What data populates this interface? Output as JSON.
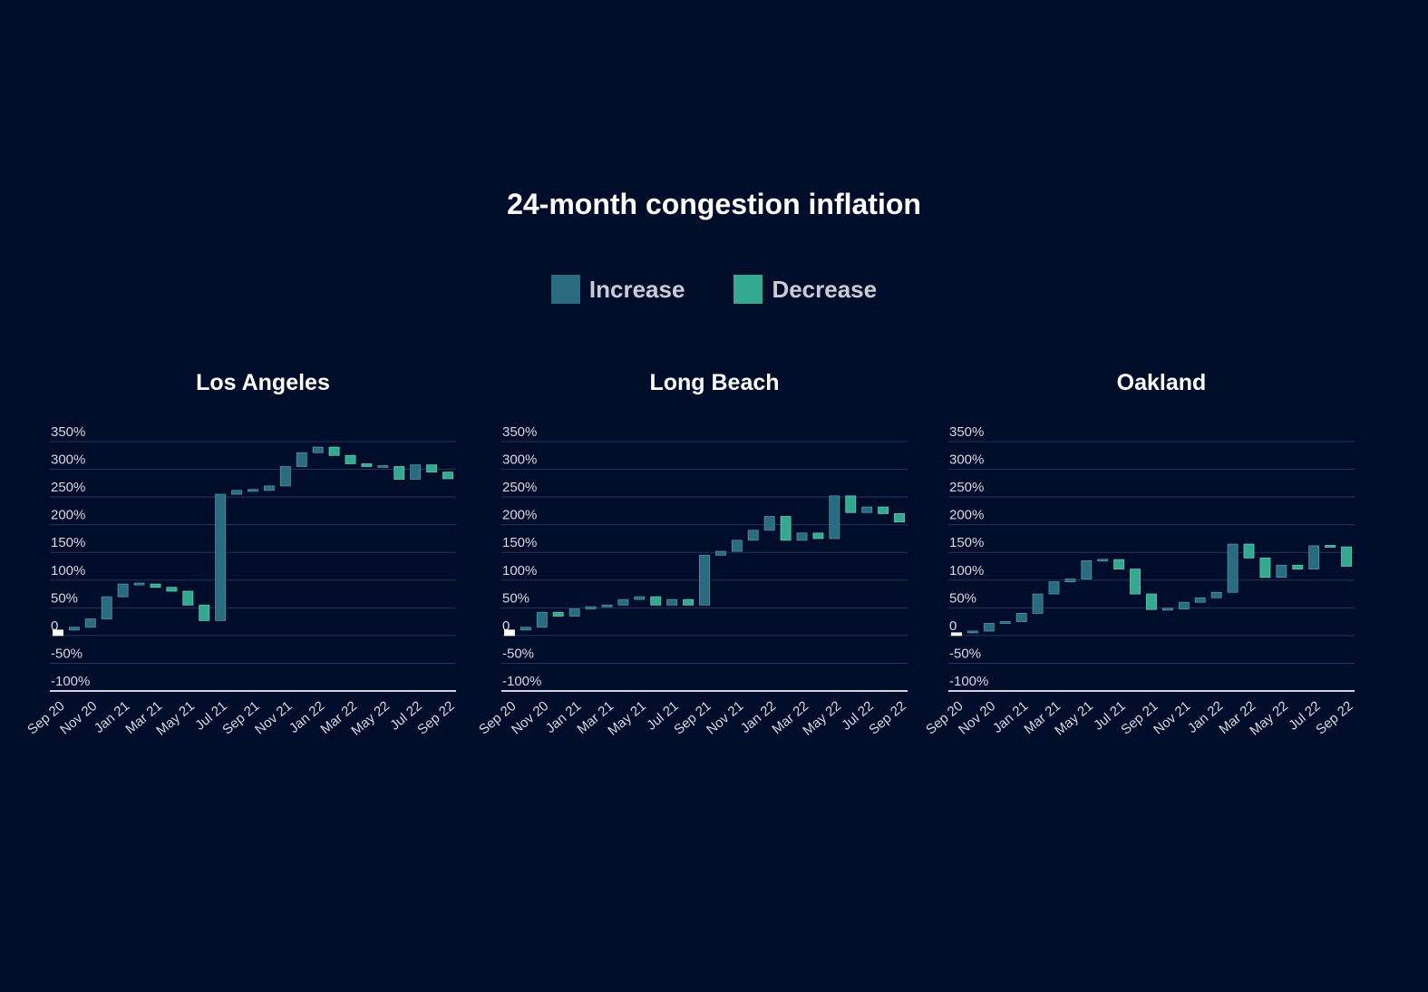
{
  "title": "24-month congestion inflation",
  "legend": {
    "increase_label": "Increase",
    "decrease_label": "Decrease"
  },
  "colors": {
    "background": "#000d2a",
    "increase": "#2a6b80",
    "decrease": "#35a98f",
    "start": "#ffffff",
    "grid": "#243554",
    "axis": "#cfd3dc"
  },
  "chart_data": [
    {
      "type": "waterfall",
      "title": "Los Angeles",
      "ylim": [
        -100,
        350
      ],
      "yticks": [
        350,
        300,
        250,
        200,
        150,
        100,
        50,
        0,
        -50,
        -100
      ],
      "ytick_labels": [
        "350%",
        "300%",
        "250%",
        "200%",
        "150%",
        "100%",
        "50%",
        "0",
        "-50%",
        "-100%"
      ],
      "xtick_labels": [
        "Sep 20",
        "Nov 20",
        "Jan 21",
        "Mar 21",
        "May 21",
        "Jul 21",
        "Sep 21",
        "Nov 21",
        "Jan 22",
        "Mar 22",
        "May 22",
        "Jul 22",
        "Sep 22"
      ],
      "x": [
        "Sep 20",
        "Oct 20",
        "Nov 20",
        "Dec 20",
        "Jan 21",
        "Feb 21",
        "Mar 21",
        "Apr 21",
        "May 21",
        "Jun 21",
        "Jul 21",
        "Aug 21",
        "Sep 21",
        "Oct 21",
        "Nov 21",
        "Dec 21",
        "Jan 22",
        "Feb 22",
        "Mar 22",
        "Apr 22",
        "May 22",
        "Jun 22",
        "Jul 22",
        "Aug 22",
        "Sep 22"
      ],
      "values": [
        10,
        15,
        30,
        70,
        93,
        93,
        87,
        80,
        55,
        27,
        255,
        262,
        262,
        270,
        305,
        330,
        340,
        325,
        310,
        305,
        305,
        282,
        308,
        295,
        283
      ]
    },
    {
      "type": "waterfall",
      "title": "Long Beach",
      "ylim": [
        -100,
        350
      ],
      "yticks": [
        350,
        300,
        250,
        200,
        150,
        100,
        50,
        0,
        -50,
        -100
      ],
      "ytick_labels": [
        "350%",
        "300%",
        "250%",
        "200%",
        "150%",
        "100%",
        "50%",
        "0",
        "-50%",
        "-100%"
      ],
      "xtick_labels": [
        "Sep 20",
        "Nov 20",
        "Jan 21",
        "Mar 21",
        "May 21",
        "Jul 21",
        "Sep 21",
        "Nov 21",
        "Jan 22",
        "Mar 22",
        "May 22",
        "Jul 22",
        "Sep 22"
      ],
      "x": [
        "Sep 20",
        "Oct 20",
        "Nov 20",
        "Dec 20",
        "Jan 21",
        "Feb 21",
        "Mar 21",
        "Apr 21",
        "May 21",
        "Jun 21",
        "Jul 21",
        "Aug 21",
        "Sep 21",
        "Oct 21",
        "Nov 21",
        "Dec 21",
        "Jan 22",
        "Feb 22",
        "Mar 22",
        "Apr 22",
        "May 22",
        "Jun 22",
        "Jul 22",
        "Aug 22",
        "Sep 22"
      ],
      "values": [
        10,
        15,
        42,
        35,
        48,
        52,
        55,
        65,
        70,
        55,
        65,
        55,
        145,
        152,
        172,
        190,
        215,
        172,
        185,
        175,
        252,
        222,
        232,
        220,
        205
      ]
    },
    {
      "type": "waterfall",
      "title": "Oakland",
      "ylim": [
        -100,
        350
      ],
      "yticks": [
        350,
        300,
        250,
        200,
        150,
        100,
        50,
        0,
        -50,
        -100
      ],
      "ytick_labels": [
        "350%",
        "300%",
        "250%",
        "200%",
        "150%",
        "100%",
        "50%",
        "0",
        "-50%",
        "-100%"
      ],
      "xtick_labels": [
        "Sep 20",
        "Nov 20",
        "Jan 21",
        "Mar 21",
        "May 21",
        "Jul 21",
        "Sep 21",
        "Nov 21",
        "Jan 22",
        "Mar 22",
        "May 22",
        "Jul 22",
        "Sep 22"
      ],
      "x": [
        "Sep 20",
        "Oct 20",
        "Nov 20",
        "Dec 20",
        "Jan 21",
        "Feb 21",
        "Mar 21",
        "Apr 21",
        "May 21",
        "Jun 21",
        "Jul 21",
        "Aug 21",
        "Sep 21",
        "Oct 21",
        "Nov 21",
        "Dec 21",
        "Jan 22",
        "Feb 22",
        "Mar 22",
        "Apr 22",
        "May 22",
        "Jun 22",
        "Jul 22",
        "Aug 22",
        "Sep 22"
      ],
      "values": [
        5,
        8,
        22,
        25,
        40,
        75,
        97,
        102,
        135,
        137,
        120,
        75,
        47,
        48,
        60,
        68,
        78,
        165,
        140,
        105,
        127,
        120,
        162,
        160,
        125
      ]
    }
  ]
}
